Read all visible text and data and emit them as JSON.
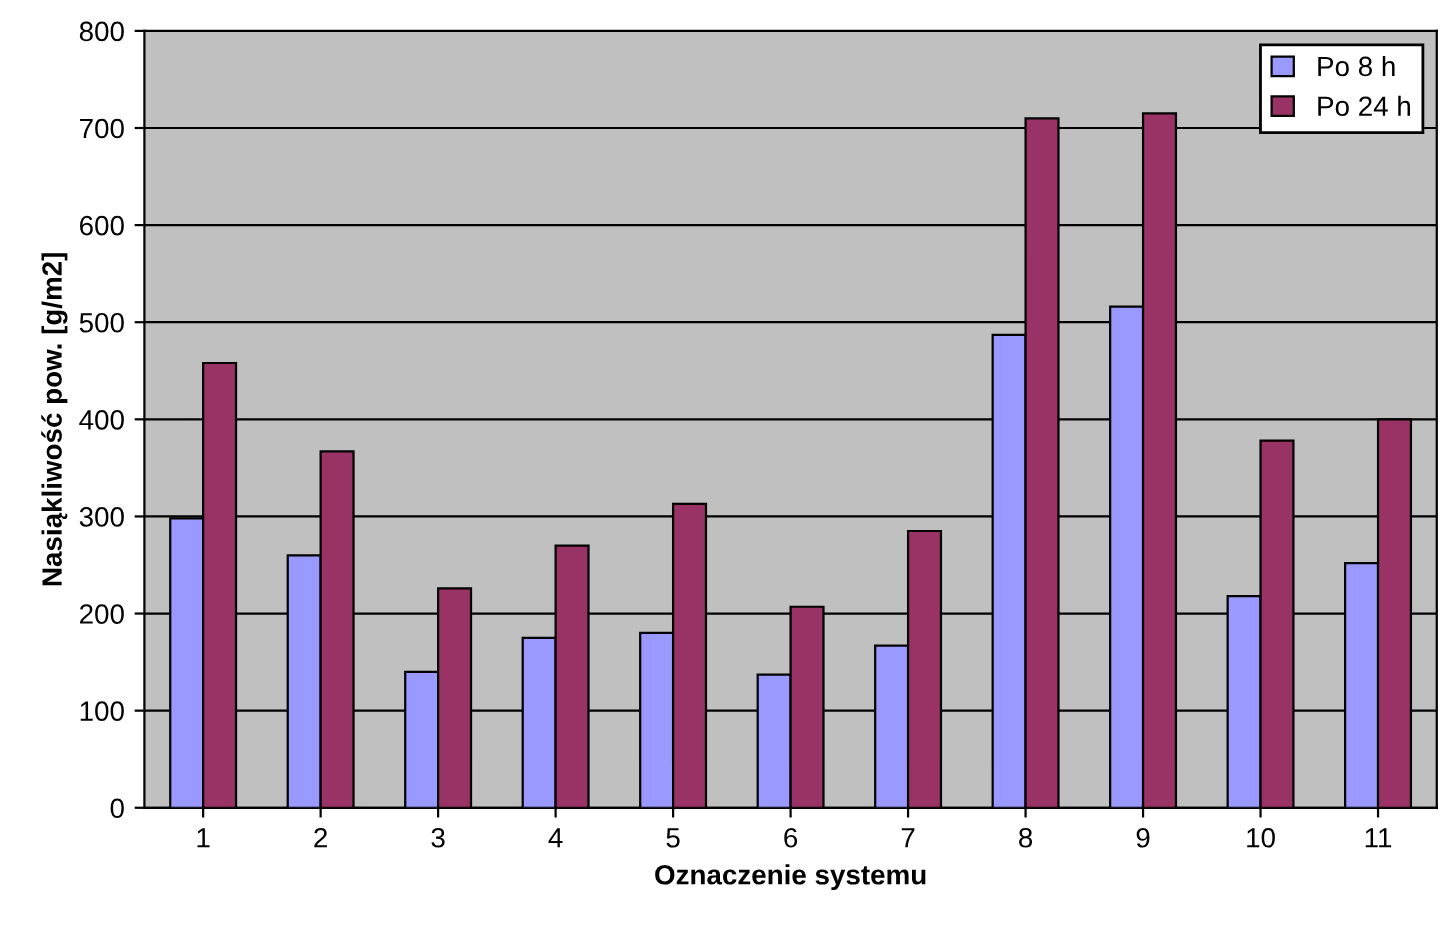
{
  "chart_data": {
    "type": "bar",
    "xlabel": "Oznaczenie systemu",
    "ylabel": "Nasiąkliwość pow. [g/m2]",
    "categories": [
      "1",
      "2",
      "3",
      "4",
      "5",
      "6",
      "7",
      "8",
      "9",
      "10",
      "11"
    ],
    "series": [
      {
        "name": "Po 8 h",
        "color": "#9999ff",
        "values": [
          298,
          260,
          140,
          175,
          180,
          137,
          167,
          487,
          516,
          218,
          252
        ]
      },
      {
        "name": "Po 24 h",
        "color": "#993366",
        "values": [
          458,
          367,
          226,
          270,
          313,
          207,
          285,
          710,
          715,
          378,
          400
        ]
      }
    ],
    "ylim": [
      0,
      800
    ],
    "yticks": [
      0,
      100,
      200,
      300,
      400,
      500,
      600,
      700,
      800
    ],
    "grid": "y",
    "legend": "top right"
  }
}
